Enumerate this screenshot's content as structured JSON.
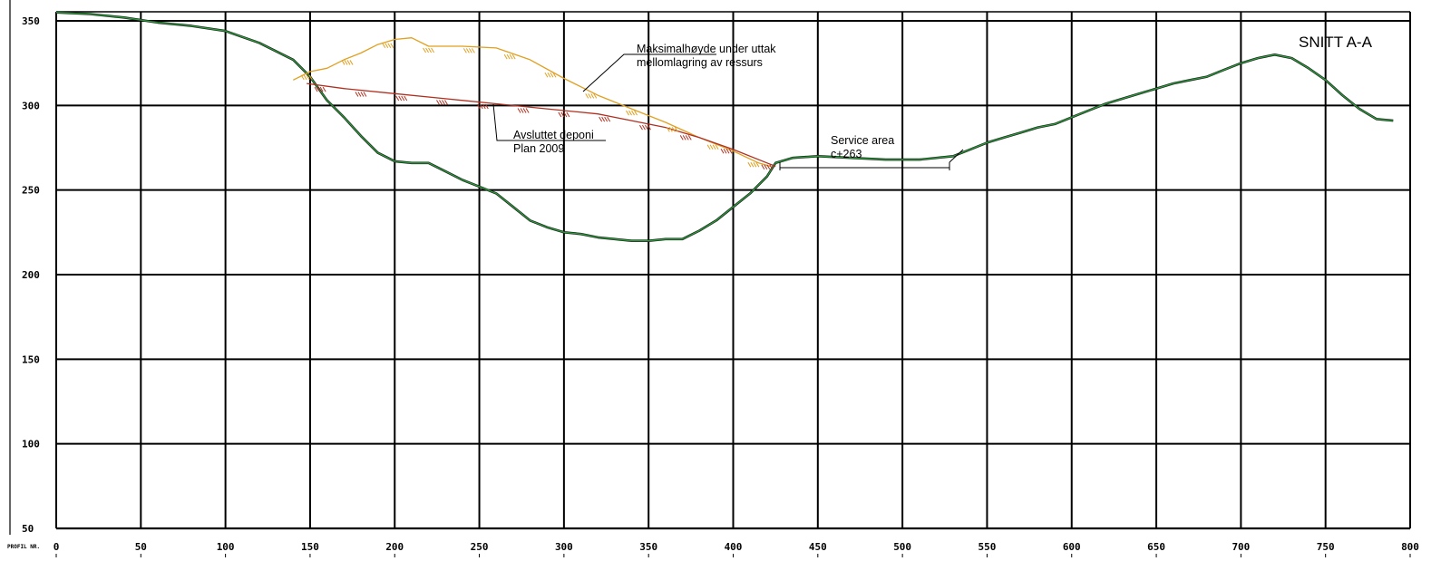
{
  "chart_data": {
    "type": "line",
    "title": "SNITT A-A",
    "xlabel": "PROFIL NR.",
    "ylabel": "",
    "xlim": [
      0,
      800
    ],
    "ylim": [
      50,
      350
    ],
    "x_ticks": [
      "0",
      "50",
      "100",
      "150",
      "200",
      "250",
      "300",
      "350",
      "400",
      "450",
      "500",
      "550",
      "600",
      "650",
      "700",
      "750",
      "800"
    ],
    "y_ticks": [
      "350",
      "300",
      "250",
      "200",
      "150",
      "100",
      "50"
    ],
    "grid": true,
    "series": [
      {
        "key": "terrain",
        "color": "#2a9d3a",
        "points": [
          [
            0,
            355
          ],
          [
            20,
            354
          ],
          [
            40,
            352
          ],
          [
            60,
            349
          ],
          [
            80,
            347
          ],
          [
            100,
            344
          ],
          [
            120,
            337
          ],
          [
            140,
            327
          ],
          [
            150,
            317
          ],
          [
            160,
            303
          ],
          [
            170,
            293
          ],
          [
            180,
            282
          ],
          [
            190,
            272
          ],
          [
            200,
            267
          ],
          [
            210,
            266
          ],
          [
            220,
            266
          ],
          [
            230,
            261
          ],
          [
            240,
            256
          ],
          [
            250,
            252
          ],
          [
            260,
            248
          ],
          [
            270,
            240
          ],
          [
            280,
            232
          ],
          [
            290,
            228
          ],
          [
            300,
            225
          ],
          [
            310,
            224
          ],
          [
            320,
            222
          ],
          [
            330,
            221
          ],
          [
            340,
            220
          ],
          [
            350,
            220
          ],
          [
            360,
            221
          ],
          [
            370,
            221
          ],
          [
            380,
            226
          ],
          [
            390,
            232
          ],
          [
            400,
            240
          ],
          [
            410,
            248
          ],
          [
            420,
            258
          ],
          [
            425,
            266
          ],
          [
            435,
            269
          ],
          [
            450,
            270
          ],
          [
            470,
            269
          ],
          [
            490,
            268
          ],
          [
            510,
            268
          ],
          [
            530,
            270
          ],
          [
            540,
            274
          ],
          [
            550,
            278
          ],
          [
            560,
            281
          ],
          [
            570,
            284
          ],
          [
            580,
            287
          ],
          [
            590,
            289
          ],
          [
            600,
            293
          ],
          [
            610,
            297
          ],
          [
            620,
            301
          ],
          [
            630,
            304
          ],
          [
            640,
            307
          ],
          [
            650,
            310
          ],
          [
            660,
            313
          ],
          [
            670,
            315
          ],
          [
            680,
            317
          ],
          [
            690,
            321
          ],
          [
            700,
            325
          ],
          [
            710,
            328
          ],
          [
            720,
            330
          ],
          [
            730,
            328
          ],
          [
            740,
            322
          ],
          [
            750,
            315
          ],
          [
            760,
            306
          ],
          [
            770,
            298
          ],
          [
            780,
            292
          ],
          [
            790,
            291
          ]
        ]
      },
      {
        "key": "max_height",
        "color": "#e0a020",
        "points": [
          [
            140,
            315
          ],
          [
            150,
            320
          ],
          [
            160,
            322
          ],
          [
            170,
            327
          ],
          [
            180,
            331
          ],
          [
            190,
            336
          ],
          [
            200,
            339
          ],
          [
            210,
            340
          ],
          [
            220,
            335
          ],
          [
            240,
            335
          ],
          [
            260,
            334
          ],
          [
            280,
            327
          ],
          [
            300,
            316
          ],
          [
            320,
            306
          ],
          [
            340,
            298
          ],
          [
            360,
            290
          ],
          [
            380,
            281
          ],
          [
            400,
            273
          ],
          [
            415,
            266
          ],
          [
            422,
            264
          ]
        ]
      },
      {
        "key": "closed_deposit",
        "color": "#b03020",
        "points": [
          [
            148,
            313
          ],
          [
            170,
            310
          ],
          [
            200,
            307
          ],
          [
            230,
            304
          ],
          [
            260,
            301
          ],
          [
            290,
            298
          ],
          [
            320,
            295
          ],
          [
            340,
            291
          ],
          [
            360,
            287
          ],
          [
            380,
            281
          ],
          [
            400,
            274
          ],
          [
            420,
            266
          ],
          [
            425,
            264
          ]
        ]
      }
    ],
    "annotations": [
      {
        "key": "max_height",
        "lines": [
          "Maksimalhøyde under uttak",
          "mellomlagring av ressurs"
        ]
      },
      {
        "key": "closed_deposit",
        "lines": [
          "Avsluttet deponi",
          "Plan 2009"
        ]
      },
      {
        "key": "service_area",
        "lines": [
          "Service area",
          "c+263"
        ]
      }
    ]
  }
}
